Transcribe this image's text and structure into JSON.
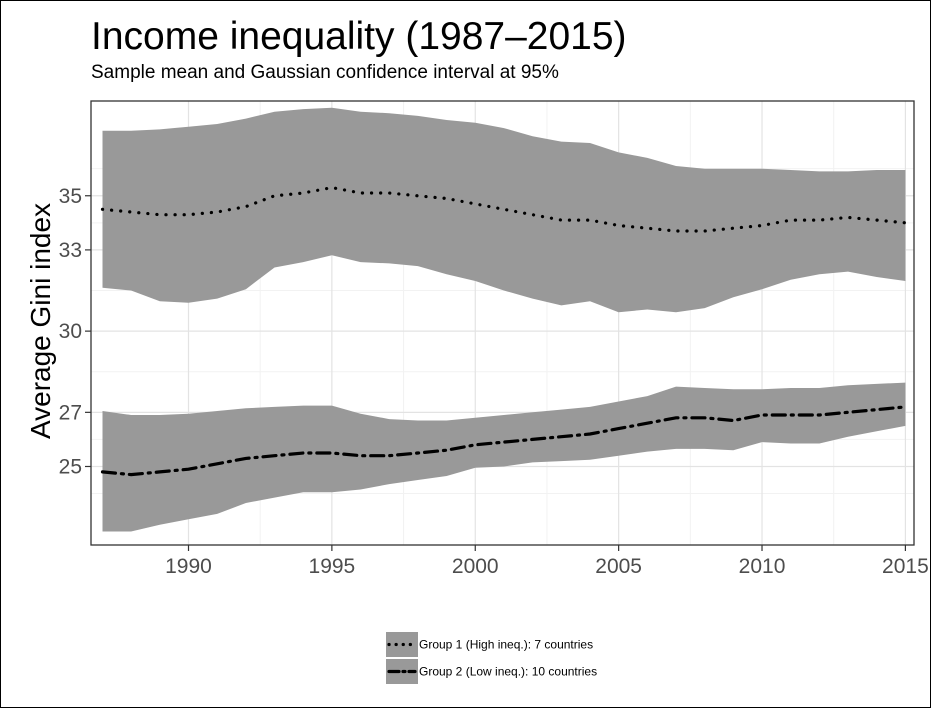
{
  "chart_data": {
    "type": "line",
    "title": "Income inequality (1987–2015)",
    "subtitle": "Sample mean and Gaussian confidence interval at 95%",
    "ylabel": "Average Gini index",
    "xlabel": "",
    "xlim": [
      1986.6,
      2015.3
    ],
    "ylim": [
      22.1,
      38.5
    ],
    "x_ticks": [
      1990,
      1995,
      2000,
      2005,
      2010,
      2015
    ],
    "y_ticks": [
      25,
      27,
      30,
      33,
      35
    ],
    "grid": true,
    "legend_position": "bottom",
    "band_color": "#999999",
    "line_color": "#000000",
    "x": [
      1987,
      1988,
      1989,
      1990,
      1991,
      1992,
      1993,
      1994,
      1995,
      1996,
      1997,
      1998,
      1999,
      2000,
      2001,
      2002,
      2003,
      2004,
      2005,
      2006,
      2007,
      2008,
      2009,
      2010,
      2011,
      2012,
      2013,
      2014,
      2015
    ],
    "series": [
      {
        "name": "Group 1 (High ineq.): 7 countries",
        "line_style": "dotted",
        "values": [
          34.5,
          34.4,
          34.3,
          34.3,
          34.4,
          34.6,
          35.0,
          35.1,
          35.3,
          35.1,
          35.1,
          35.0,
          34.9,
          34.7,
          34.5,
          34.3,
          34.1,
          34.1,
          33.9,
          33.8,
          33.7,
          33.7,
          33.8,
          33.9,
          34.1,
          34.1,
          34.2,
          34.1,
          34.0
        ],
        "upper": [
          37.4,
          37.4,
          37.45,
          37.55,
          37.65,
          37.85,
          38.1,
          38.2,
          38.25,
          38.1,
          38.05,
          37.95,
          37.8,
          37.7,
          37.5,
          37.2,
          37.0,
          36.95,
          36.6,
          36.4,
          36.1,
          36.0,
          36.0,
          36.0,
          35.95,
          35.9,
          35.9,
          35.95,
          35.95
        ],
        "lower": [
          31.6,
          31.5,
          31.1,
          31.05,
          31.2,
          31.55,
          32.35,
          32.55,
          32.8,
          32.55,
          32.5,
          32.4,
          32.1,
          31.85,
          31.5,
          31.2,
          30.95,
          31.1,
          30.7,
          30.8,
          30.7,
          30.85,
          31.25,
          31.55,
          31.9,
          32.1,
          32.2,
          32.0,
          31.85
        ]
      },
      {
        "name": "Group 2 (Low ineq.): 10 countries",
        "line_style": "dashed",
        "values": [
          24.8,
          24.7,
          24.8,
          24.9,
          25.1,
          25.3,
          25.4,
          25.5,
          25.5,
          25.4,
          25.4,
          25.5,
          25.6,
          25.8,
          25.9,
          26.0,
          26.1,
          26.2,
          26.4,
          26.6,
          26.8,
          26.8,
          26.7,
          26.9,
          26.9,
          26.9,
          27.0,
          27.1,
          27.2
        ],
        "upper": [
          27.05,
          26.9,
          26.9,
          26.95,
          27.05,
          27.15,
          27.2,
          27.25,
          27.25,
          26.95,
          26.75,
          26.7,
          26.7,
          26.8,
          26.9,
          27.0,
          27.1,
          27.2,
          27.4,
          27.6,
          27.95,
          27.9,
          27.85,
          27.85,
          27.9,
          27.9,
          28.0,
          28.05,
          28.1
        ],
        "lower": [
          22.6,
          22.6,
          22.85,
          23.05,
          23.25,
          23.65,
          23.85,
          24.05,
          24.05,
          24.15,
          24.35,
          24.5,
          24.65,
          24.95,
          25.0,
          25.15,
          25.2,
          25.25,
          25.4,
          25.55,
          25.65,
          25.65,
          25.6,
          25.9,
          25.85,
          25.85,
          26.1,
          26.3,
          26.5
        ]
      }
    ]
  }
}
